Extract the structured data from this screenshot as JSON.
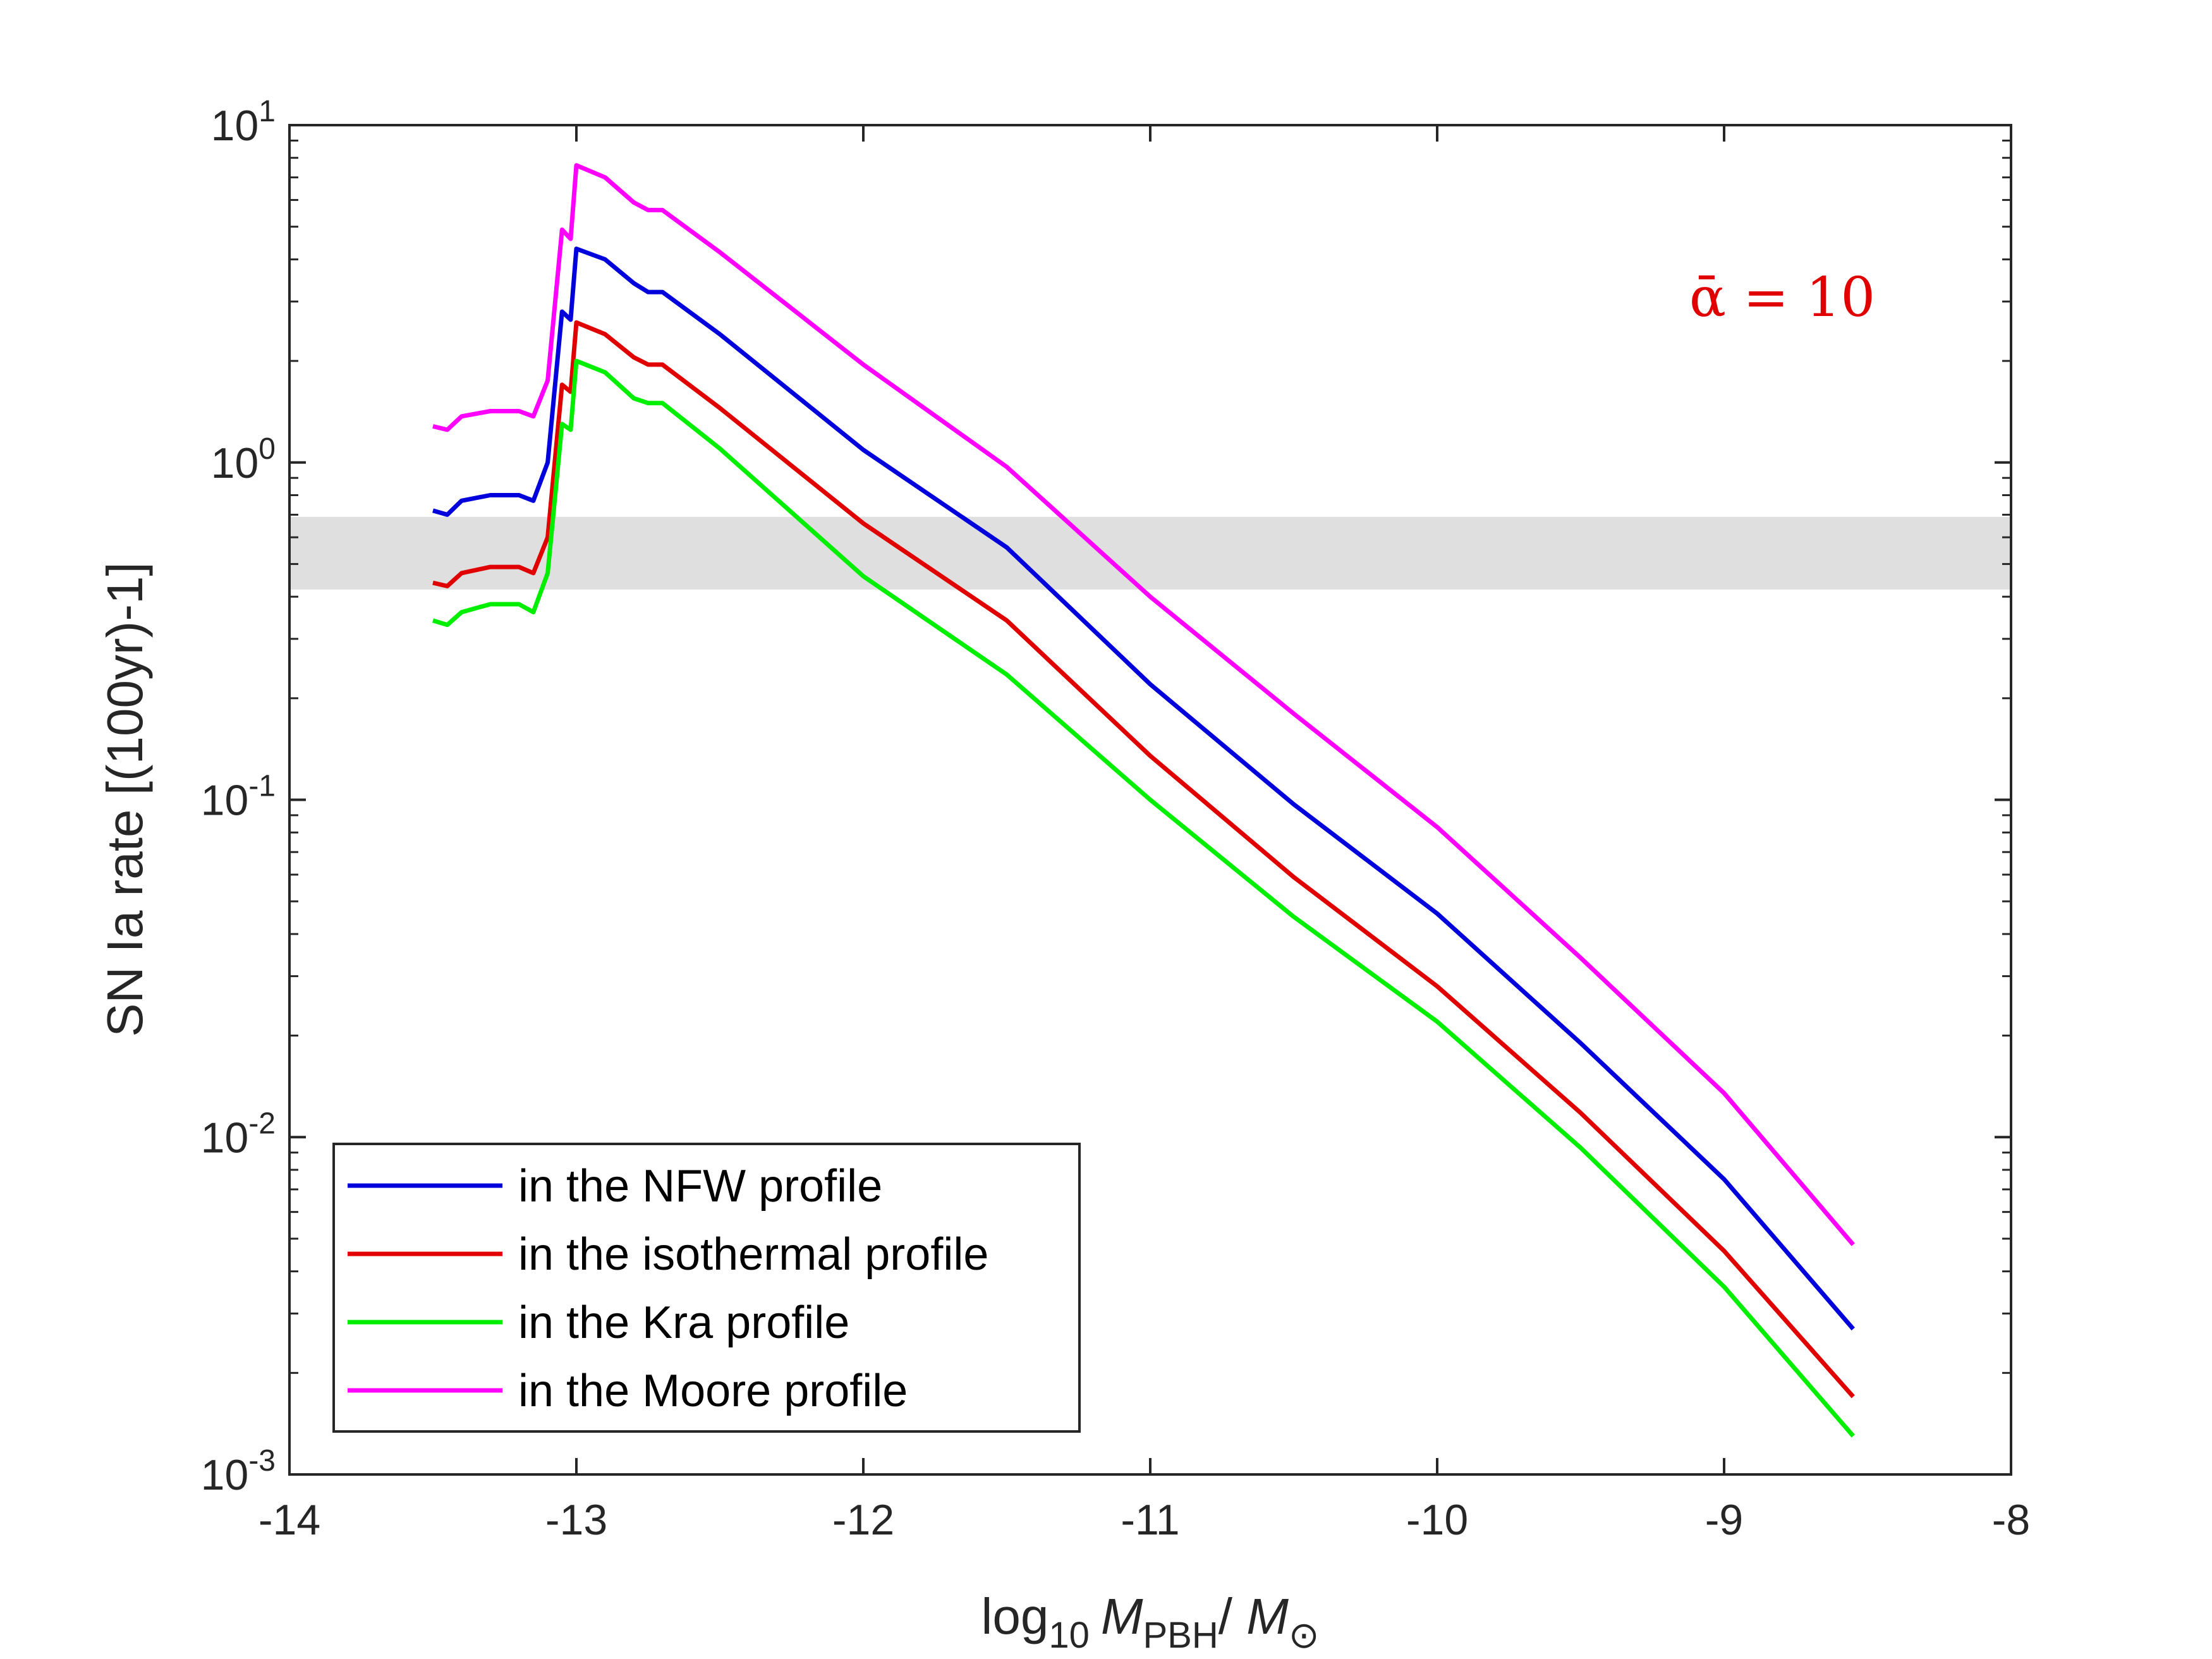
{
  "chart_data": {
    "type": "line",
    "title": "",
    "xlabel": {
      "prefix": "log",
      "prefix_sub": "10",
      "mass": "M",
      "mass_sub": "PBH",
      "sep": "/ ",
      "sun": "M",
      "sun_sub": "⊙"
    },
    "ylabel": "SN Ia rate [(100yr)-1]",
    "xlim": [
      -14,
      -8
    ],
    "ylim": [
      0.001,
      10
    ],
    "yscale": "log",
    "x_ticks": [
      "-14",
      "-13",
      "-12",
      "-11",
      "-10",
      "-9",
      "-8"
    ],
    "y_ticks": [
      {
        "base": "10",
        "exp": "-3"
      },
      {
        "base": "10",
        "exp": "-2"
      },
      {
        "base": "10",
        "exp": "-1"
      },
      {
        "base": "10",
        "exp": "0"
      },
      {
        "base": "10",
        "exp": "1"
      }
    ],
    "shaded_band": {
      "ymin": 0.42,
      "ymax": 0.69,
      "color": "#d9d9d9"
    },
    "annotation": {
      "text": "ᾱ = 10",
      "color": "#e00000"
    },
    "legend_position": "bottom-left",
    "series": [
      {
        "name": "in the NFW profile",
        "color": "#0000dd",
        "x": [
          -13.5,
          -13.45,
          -13.4,
          -13.3,
          -13.2,
          -13.15,
          -13.1,
          -13.05,
          -13.02,
          -13.0,
          -12.9,
          -12.8,
          -12.75,
          -12.7,
          -12.5,
          -12.0,
          -11.5,
          -11.0,
          -10.5,
          -10.0,
          -9.5,
          -9.0,
          -8.55
        ],
        "y": [
          0.72,
          0.7,
          0.77,
          0.8,
          0.8,
          0.77,
          1.0,
          2.8,
          2.65,
          4.3,
          4.0,
          3.4,
          3.2,
          3.2,
          2.4,
          1.09,
          0.56,
          0.22,
          0.097,
          0.046,
          0.019,
          0.0075,
          0.0027
        ]
      },
      {
        "name": "in the isothermal profile",
        "color": "#e00000",
        "x": [
          -13.5,
          -13.45,
          -13.4,
          -13.3,
          -13.2,
          -13.15,
          -13.1,
          -13.05,
          -13.02,
          -13.0,
          -12.9,
          -12.8,
          -12.75,
          -12.7,
          -12.5,
          -12.0,
          -11.5,
          -11.0,
          -10.5,
          -10.0,
          -9.5,
          -9.0,
          -8.55
        ],
        "y": [
          0.44,
          0.43,
          0.47,
          0.49,
          0.49,
          0.47,
          0.6,
          1.7,
          1.62,
          2.6,
          2.4,
          2.05,
          1.95,
          1.95,
          1.45,
          0.66,
          0.34,
          0.135,
          0.059,
          0.028,
          0.0118,
          0.0046,
          0.0017
        ]
      },
      {
        "name": "in the Kra profile",
        "color": "#00ee00",
        "x": [
          -13.5,
          -13.45,
          -13.4,
          -13.3,
          -13.2,
          -13.15,
          -13.1,
          -13.05,
          -13.02,
          -13.0,
          -12.9,
          -12.8,
          -12.75,
          -12.7,
          -12.5,
          -12.0,
          -11.5,
          -11.0,
          -10.5,
          -10.0,
          -9.5,
          -9.0,
          -8.55
        ],
        "y": [
          0.34,
          0.33,
          0.36,
          0.38,
          0.38,
          0.36,
          0.47,
          1.3,
          1.25,
          2.0,
          1.85,
          1.55,
          1.5,
          1.5,
          1.1,
          0.46,
          0.235,
          0.1,
          0.045,
          0.022,
          0.0093,
          0.0036,
          0.0013
        ]
      },
      {
        "name": "in the Moore profile",
        "color": "#ff00ff",
        "x": [
          -13.5,
          -13.45,
          -13.4,
          -13.3,
          -13.2,
          -13.15,
          -13.1,
          -13.05,
          -13.02,
          -13.0,
          -12.9,
          -12.8,
          -12.75,
          -12.7,
          -12.5,
          -12.0,
          -11.5,
          -11.0,
          -10.5,
          -10.0,
          -9.5,
          -9.0,
          -8.55
        ],
        "y": [
          1.28,
          1.25,
          1.37,
          1.42,
          1.42,
          1.37,
          1.75,
          4.9,
          4.6,
          7.6,
          7.0,
          5.9,
          5.6,
          5.6,
          4.2,
          1.95,
          0.97,
          0.4,
          0.18,
          0.083,
          0.034,
          0.0135,
          0.0048
        ]
      }
    ]
  }
}
